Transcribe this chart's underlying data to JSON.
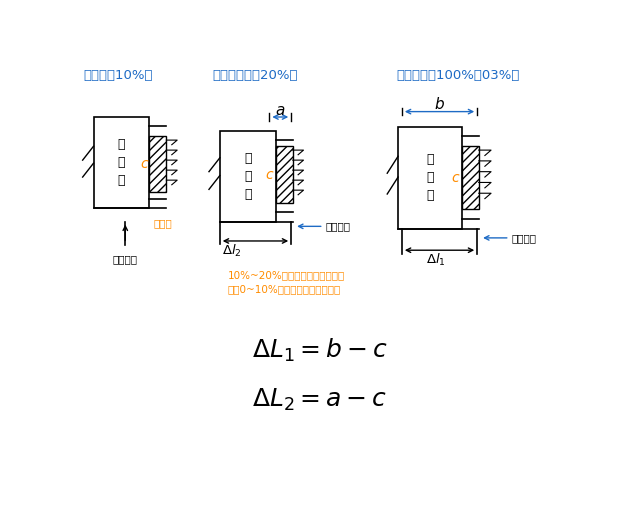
{
  "title_1": "初应力（10%）",
  "title_2": "二倍初应力（20%）",
  "title_3": "控制应力（100%或03%）",
  "label_qianding": "千\n斤\n顶",
  "label_c": "c",
  "label_gongjumao": "工具锚",
  "label_liangceqidian": "量测起点",
  "label_note1": "10%~20%应力相邻级时的伸长量",
  "label_note2": "做为0~10%应力时伸长量的推算值",
  "formula1": "$\\Delta L_1 = b - c$",
  "formula2": "$\\Delta L_2 = a - c$",
  "color_title": "#1E6BC5",
  "color_c": "#FF8C00",
  "color_gongjumao": "#FF8C00",
  "color_note": "#FF8C00",
  "color_dim_arrow": "#1E6BC5",
  "bg_color": "#FFFFFF"
}
